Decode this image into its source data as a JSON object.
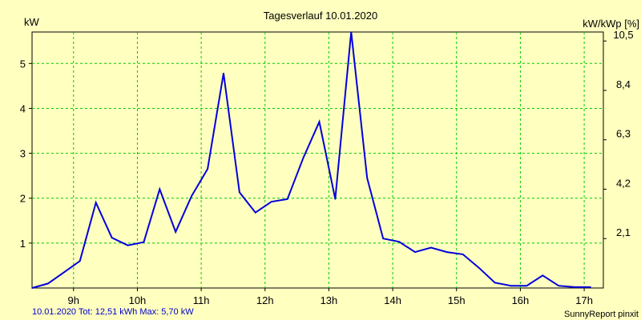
{
  "chart_data": {
    "type": "line",
    "title": "Tagesverlauf 10.01.2020",
    "left_unit": "kW",
    "right_unit": "kW/kWp [%]",
    "footer_left": "10.01.2020 Tot: 12,51 kWh Max: 5,70 kW",
    "footer_right": "SunnyReport pinxit",
    "xlim": [
      8.35,
      17.3
    ],
    "ylim": [
      0,
      5.7
    ],
    "x_ticks": [
      9,
      10,
      11,
      12,
      13,
      14,
      15,
      16,
      17
    ],
    "x_tick_labels": [
      "9h",
      "10h",
      "11h",
      "12h",
      "13h",
      "14h",
      "15h",
      "16h",
      "17h"
    ],
    "y_ticks": [
      1,
      2,
      3,
      4,
      5
    ],
    "y_tick_labels": [
      "1",
      "2",
      "3",
      "4",
      "5"
    ],
    "y2_ticks": [
      1.1,
      2.2,
      3.3,
      4.4,
      5.5
    ],
    "y2_tick_labels": [
      "2,1",
      "4,2",
      "6,3",
      "8,4",
      "10,5"
    ],
    "grid": true,
    "colors": {
      "background": "#FFFFC0",
      "grid": "#00CC00",
      "line": "#0000DD",
      "footer_left": "#0000CC"
    },
    "series": [
      {
        "x": [
          8.35,
          8.6,
          8.85,
          9.1,
          9.35,
          9.6,
          9.85,
          10.1,
          10.35,
          10.6,
          10.85,
          11.1,
          11.35,
          11.6,
          11.85,
          12.1,
          12.35,
          12.6,
          12.85,
          13.1,
          13.35,
          13.6,
          13.85,
          14.1,
          14.35,
          14.6,
          14.85,
          15.1,
          15.35,
          15.6,
          15.85,
          16.1,
          16.35,
          16.6,
          16.85,
          17.1
        ],
        "y": [
          0.0,
          0.1,
          0.35,
          0.6,
          1.9,
          1.12,
          0.95,
          1.02,
          2.2,
          1.25,
          2.05,
          2.65,
          4.78,
          2.13,
          1.68,
          1.92,
          1.98,
          2.9,
          3.7,
          1.98,
          5.7,
          2.45,
          1.1,
          1.03,
          0.8,
          0.9,
          0.8,
          0.75,
          0.45,
          0.12,
          0.05,
          0.05,
          0.28,
          0.05,
          0.02,
          0.02
        ]
      }
    ]
  }
}
